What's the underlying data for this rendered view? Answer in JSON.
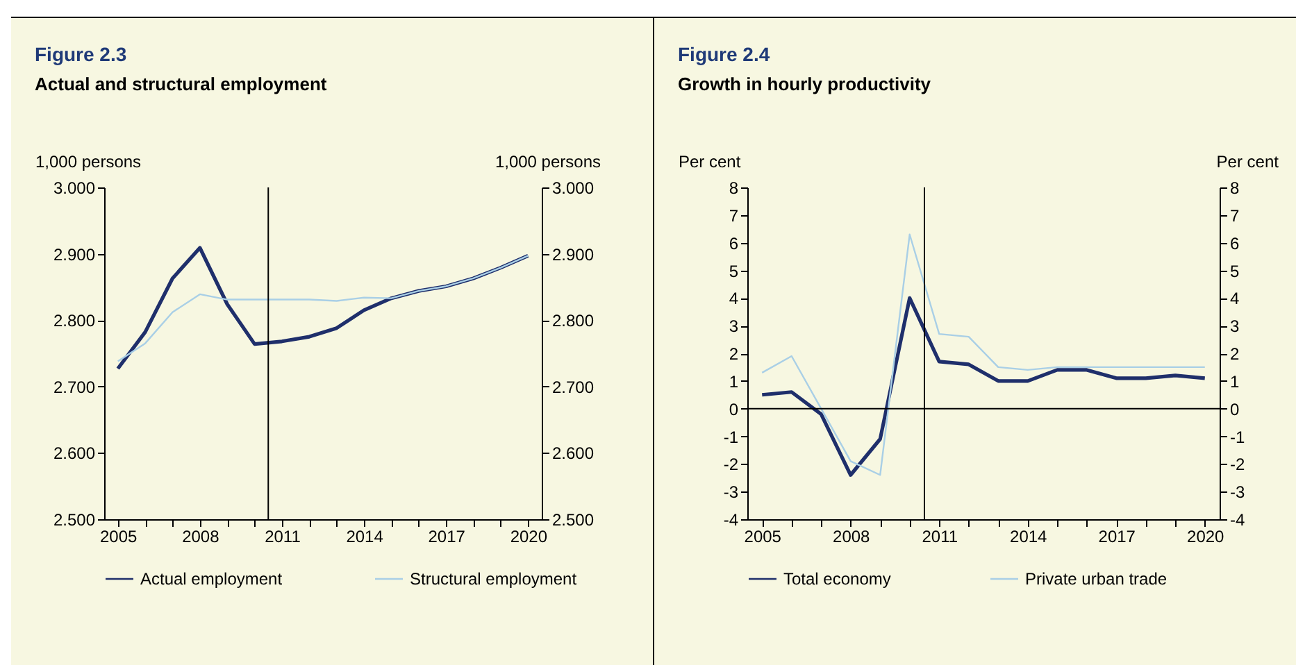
{
  "chart_data": [
    {
      "type": "line",
      "title": "Figure 2.3",
      "subtitle": "Actual and structural employment",
      "ylabel": "1,000 persons",
      "y2label": "1,000 persons",
      "x": [
        2005,
        2006,
        2007,
        2008,
        2009,
        2010,
        2011,
        2012,
        2013,
        2014,
        2015,
        2016,
        2017,
        2018,
        2019,
        2020
      ],
      "xlim": [
        2004.5,
        2020.5
      ],
      "xticks": [
        2005,
        {
          "value": 2006,
          "label": null
        },
        {
          "value": 2007,
          "label": null
        },
        2008,
        {
          "value": 2009,
          "label": null
        },
        {
          "value": 2010,
          "label": null
        },
        2011,
        {
          "value": 2012,
          "label": null
        },
        {
          "value": 2013,
          "label": null
        },
        2014,
        {
          "value": 2015,
          "label": null
        },
        {
          "value": 2016,
          "label": null
        },
        2017,
        {
          "value": 2018,
          "label": null
        },
        {
          "value": 2019,
          "label": null
        },
        2020
      ],
      "ylim": [
        2.5,
        3.0
      ],
      "yticks": [
        {
          "value": 2.5,
          "label": "2.500"
        },
        {
          "value": 2.6,
          "label": "2.600"
        },
        {
          "value": 2.7,
          "label": "2.700"
        },
        {
          "value": 2.8,
          "label": "2.800"
        },
        {
          "value": 2.9,
          "label": "2.900"
        },
        {
          "value": 3.0,
          "label": "3.000"
        }
      ],
      "y2lim": [
        2.5,
        3.0
      ],
      "y2ticks": [
        {
          "value": 2.5,
          "label": "2.500"
        },
        {
          "value": 2.6,
          "label": "2.600"
        },
        {
          "value": 2.7,
          "label": "2.700"
        },
        {
          "value": 2.8,
          "label": "2.800"
        },
        {
          "value": 2.9,
          "label": "2.900"
        },
        {
          "value": 3.0,
          "label": "3.000"
        }
      ],
      "series": [
        {
          "name": "Actual employment",
          "color": "#1f2f6b",
          "values": [
            2.727,
            2.782,
            2.863,
            2.909,
            2.824,
            2.764,
            2.768,
            2.775,
            2.788,
            2.815,
            2.833,
            2.844,
            2.851,
            2.863,
            2.879,
            2.897
          ]
        },
        {
          "name": "Structural employment",
          "color": "#a9cfe6",
          "values": [
            2.738,
            2.765,
            2.812,
            2.839,
            2.831,
            2.831,
            2.831,
            2.831,
            2.829,
            2.834,
            2.833,
            2.844,
            2.851,
            2.863,
            2.879,
            2.897
          ]
        }
      ],
      "ref_lines": [
        {
          "axis": "x",
          "value": 2010.5,
          "label": null
        }
      ],
      "legend": "bottom",
      "line_style": "solid"
    },
    {
      "type": "line",
      "title": "Figure 2.4",
      "subtitle": "Growth in hourly productivity",
      "ylabel": "Per cent",
      "y2label": "Per cent",
      "x": [
        2005,
        2006,
        2007,
        2008,
        2009,
        2010,
        2011,
        2012,
        2013,
        2014,
        2015,
        2016,
        2017,
        2018,
        2019,
        2020
      ],
      "xlim": [
        2004.5,
        2020.5
      ],
      "xticks": [
        2005,
        {
          "value": 2006,
          "label": null
        },
        {
          "value": 2007,
          "label": null
        },
        2008,
        {
          "value": 2009,
          "label": null
        },
        {
          "value": 2010,
          "label": null
        },
        2011,
        {
          "value": 2012,
          "label": null
        },
        {
          "value": 2013,
          "label": null
        },
        2014,
        {
          "value": 2015,
          "label": null
        },
        {
          "value": 2016,
          "label": null
        },
        2017,
        {
          "value": 2018,
          "label": null
        },
        {
          "value": 2019,
          "label": null
        },
        2020
      ],
      "ylim": [
        -4,
        8
      ],
      "yticks": [
        -4,
        -3,
        -2,
        -1,
        0,
        1,
        2,
        3,
        4,
        5,
        6,
        7,
        8
      ],
      "y2lim": [
        -4,
        8
      ],
      "y2ticks": [
        -4,
        -3,
        -2,
        -1,
        0,
        1,
        2,
        3,
        4,
        5,
        6,
        7,
        8
      ],
      "series": [
        {
          "name": "Total economy",
          "color": "#1f2f6b",
          "values": [
            0.5,
            0.6,
            -0.2,
            -2.4,
            -1.1,
            4.0,
            1.7,
            1.6,
            1.0,
            1.0,
            1.4,
            1.4,
            1.1,
            1.1,
            1.2,
            1.1
          ]
        },
        {
          "name": "Private urban trade",
          "color": "#a9cfe6",
          "values": [
            1.3,
            1.9,
            0.0,
            -1.9,
            -2.4,
            6.3,
            2.7,
            2.6,
            1.5,
            1.4,
            1.5,
            1.5,
            1.5,
            1.5,
            1.5,
            1.5
          ]
        }
      ],
      "ref_lines": [
        {
          "axis": "x",
          "value": 2010.5,
          "label": null
        },
        {
          "axis": "y",
          "value": 0,
          "label": null
        }
      ],
      "legend": "bottom",
      "line_style": "solid"
    }
  ]
}
